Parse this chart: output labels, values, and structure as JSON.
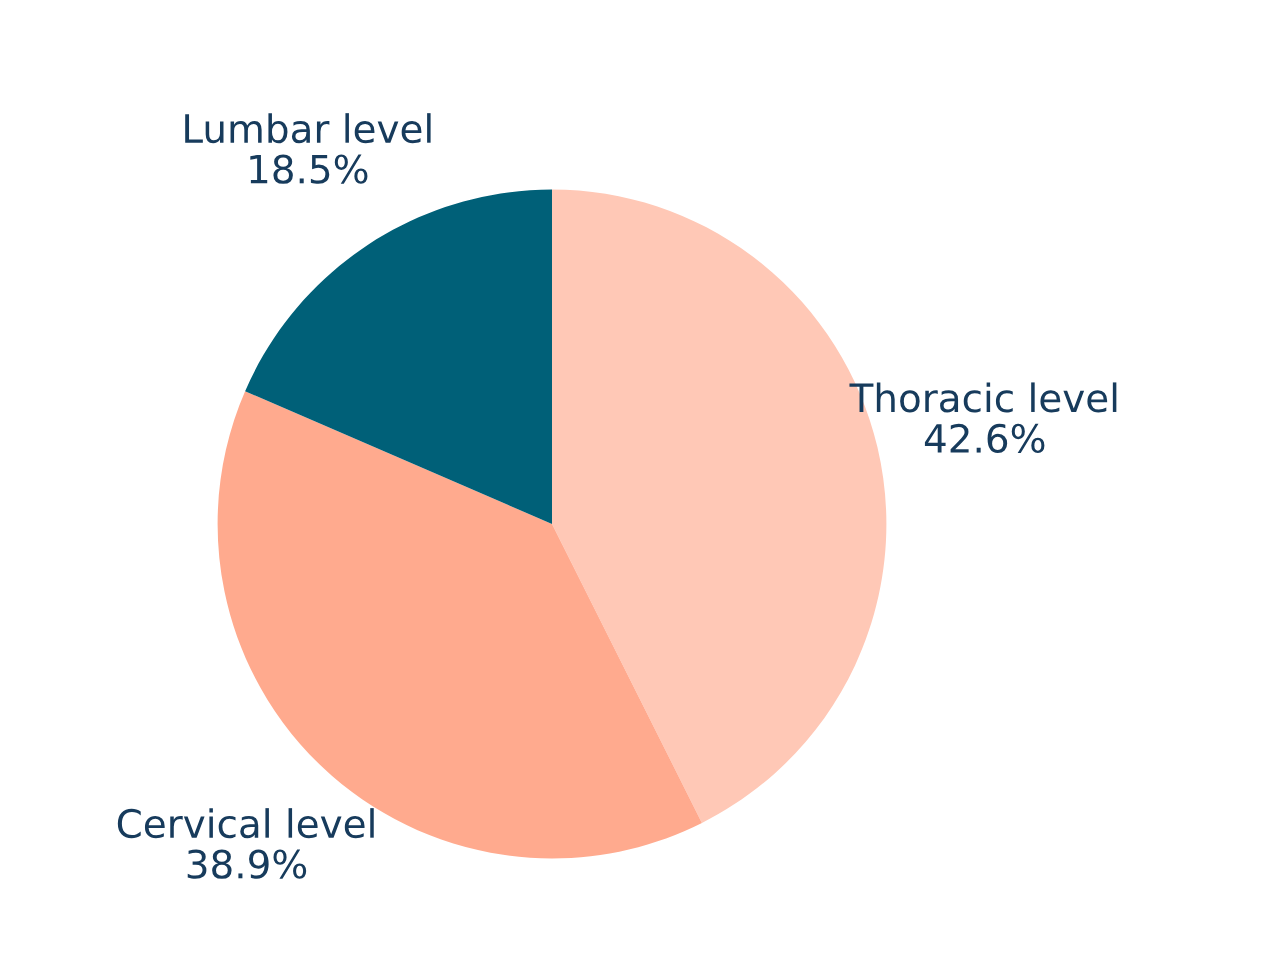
{
  "chart_data": {
    "type": "pie",
    "categories": [
      "Thoracic level",
      "Cervical level",
      "Lumbar level"
    ],
    "values": [
      42.6,
      38.9,
      18.5
    ],
    "value_labels": [
      "42.6%",
      "38.9%",
      "18.5%"
    ],
    "colors": [
      "#ffc8b6",
      "#ffaa8e",
      "#006078"
    ]
  }
}
